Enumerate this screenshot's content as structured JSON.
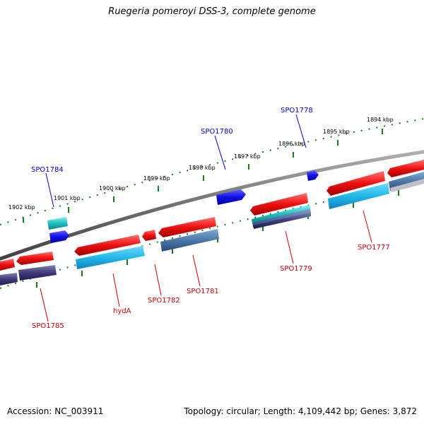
{
  "title": "Ruegeria pomeroyi DSS-3, complete genome",
  "footer": {
    "accession": "Accession: NC_003911",
    "summary": "Topology: circular; Length: 4,109,442 bp; Genes: 3,872"
  },
  "colors": {
    "backbone": "#7a7a7a",
    "tick": "#1a7a1a",
    "forward_label": "#0000cc",
    "reverse_label": "#cc0000",
    "forward_gene": "#1010e0",
    "reverse_gene": "#e81010",
    "cds_cyan": "#20b8e8",
    "cds_slate": "#4a78a8",
    "cds_purple": "#403a78",
    "cds_teal": "#20c0c0"
  },
  "scale_labels": [
    "1902 kbp",
    "1901 kbp",
    "1900 kbp",
    "1899 kbp",
    "1898 kbp",
    "1897 kbp",
    "1896 kbp",
    "1895 kbp",
    "1894 kbp"
  ],
  "forward_genes": [
    "SPO1784",
    "SPO1780",
    "SPO1778"
  ],
  "reverse_genes": [
    "SPO1785",
    "hydA",
    "SPO1782",
    "SPO1781",
    "SPO1779",
    "SPO1777"
  ]
}
